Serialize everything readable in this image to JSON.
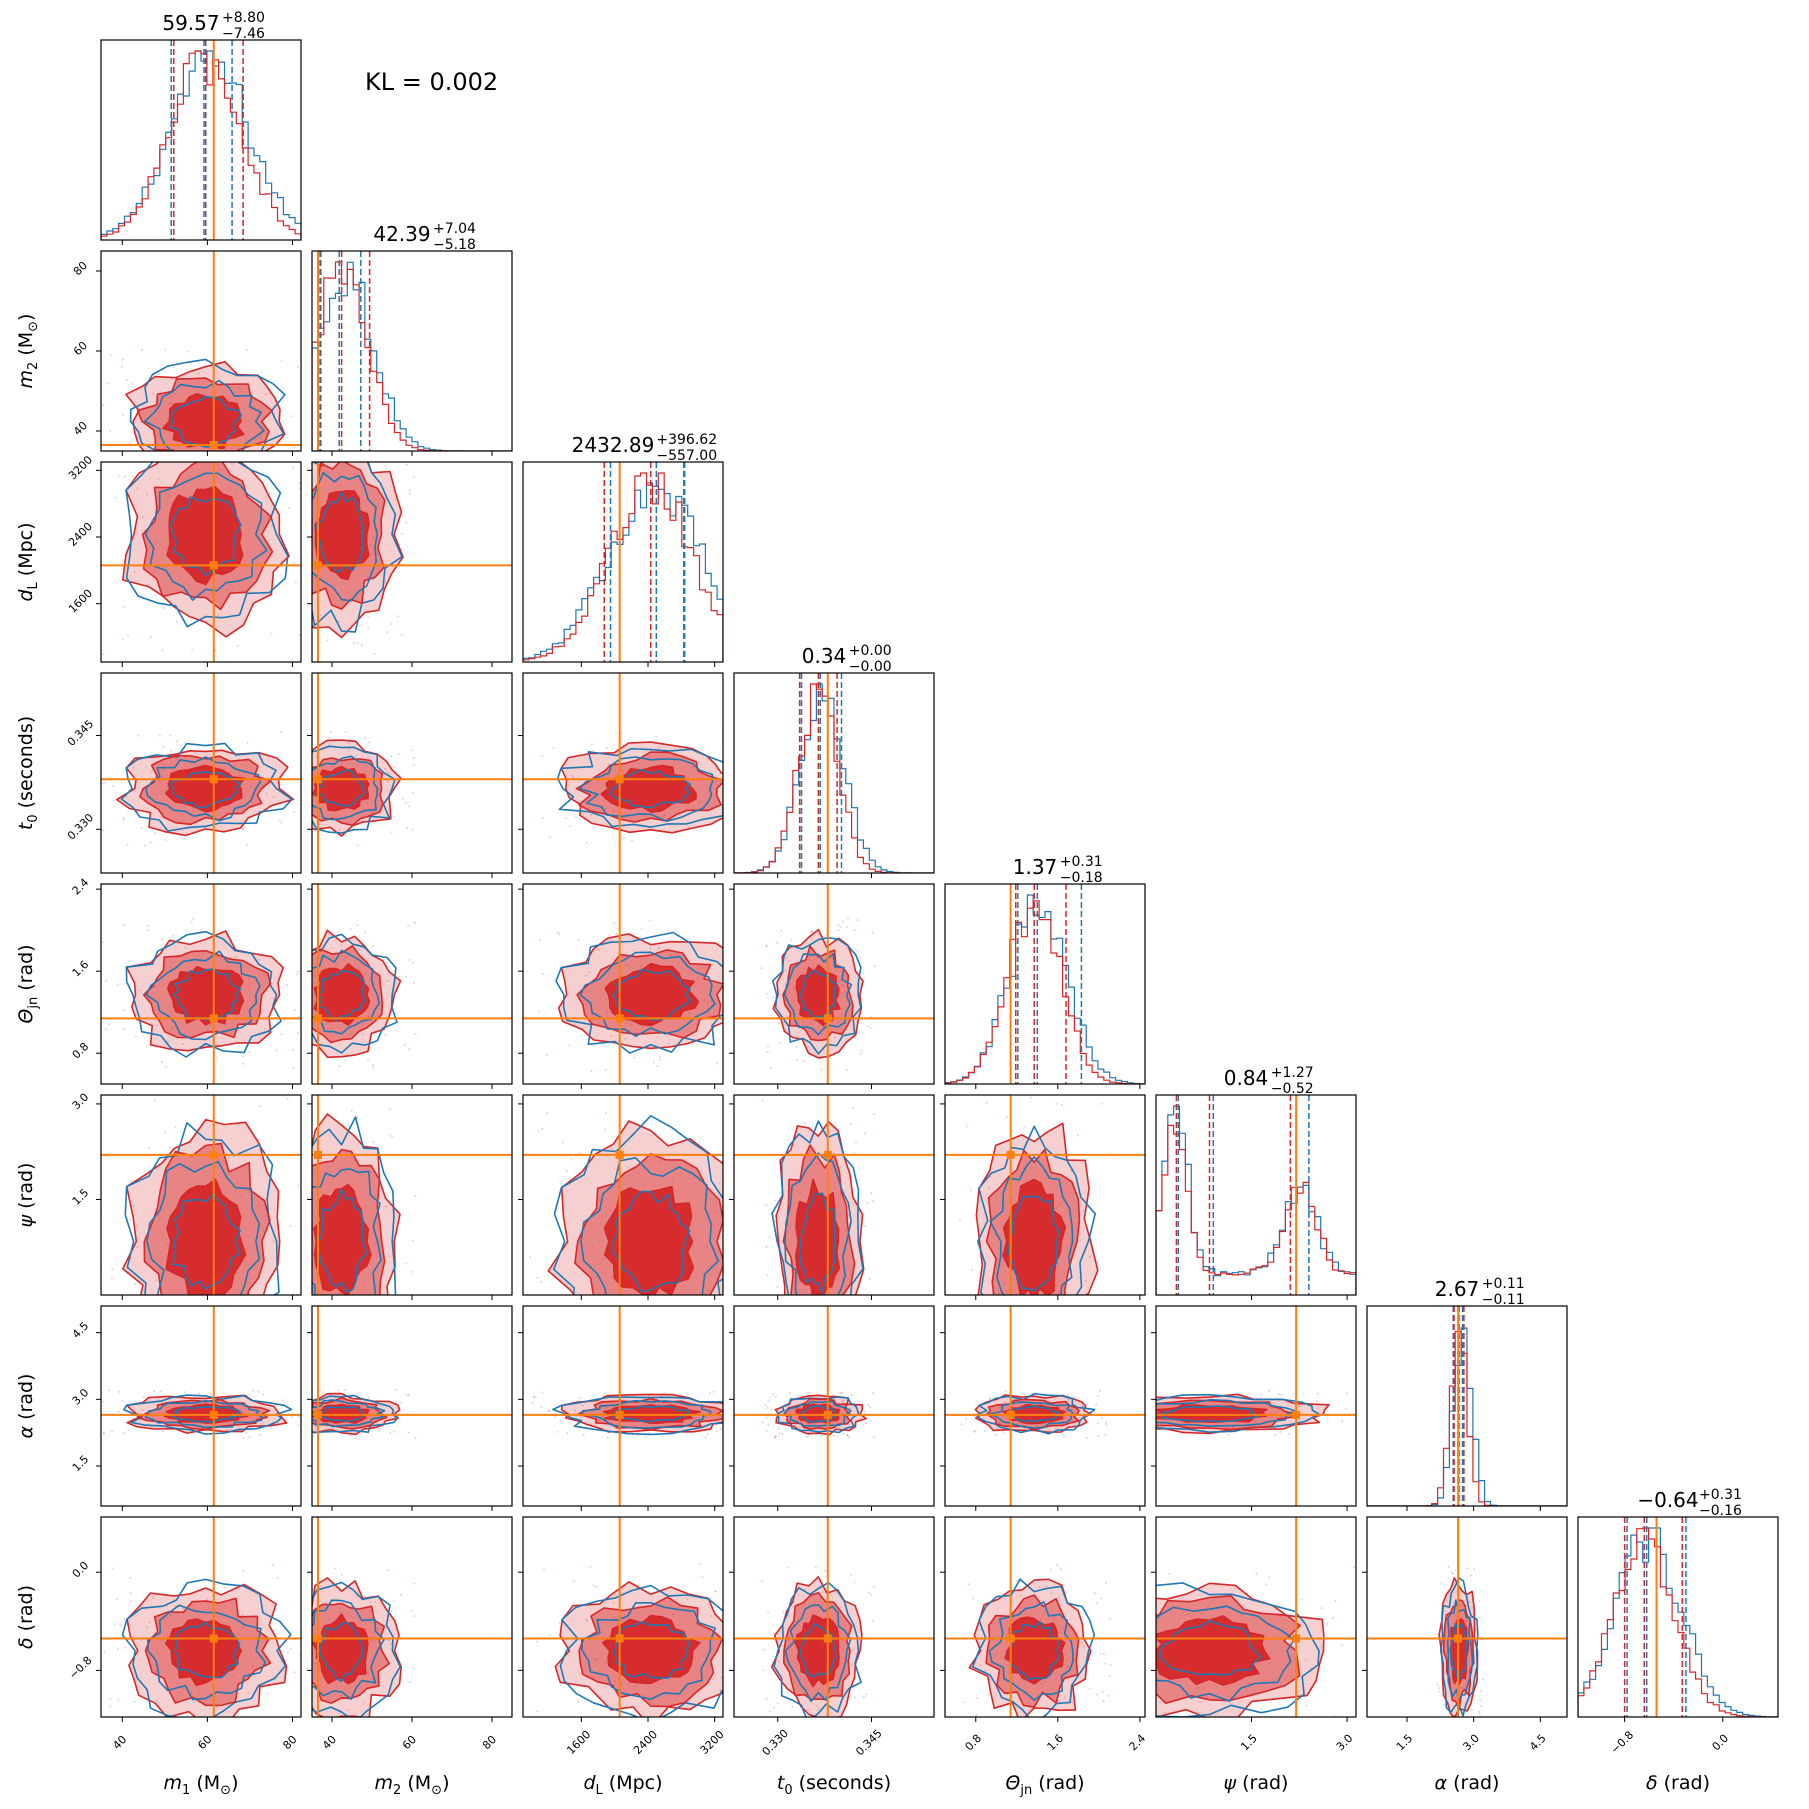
{
  "chart_data": {
    "type": "corner",
    "annotation": "KL = 0.002",
    "colors": {
      "series_a": "#d62728",
      "series_b": "#1f77b4",
      "truth": "#ff7f0e"
    },
    "parameters": [
      {
        "key": "m1",
        "label_main": "m",
        "label_sub": "1",
        "label_unit": " (M",
        "label_unit_sub": "⊙",
        "label_close": ")",
        "range": [
          35,
          82
        ],
        "ticks": [
          40,
          60,
          80
        ],
        "tick_labels": [
          "40",
          "60",
          "80"
        ],
        "truth": 61.5,
        "title_main": "59.57",
        "title_plus": "+8.80",
        "title_minus": "−7.46",
        "quantiles_a": [
          52.1,
          59.6,
          68.4
        ],
        "quantiles_b": [
          51.5,
          59.2,
          65.8
        ]
      },
      {
        "key": "m2",
        "label_main": "m",
        "label_sub": "2",
        "label_unit": " (M",
        "label_unit_sub": "⊙",
        "label_close": ")",
        "range": [
          35,
          85
        ],
        "ticks": [
          40,
          60,
          80
        ],
        "tick_labels": [
          "40",
          "60",
          "80"
        ],
        "truth": 36.5,
        "title_main": "42.39",
        "title_plus": "+7.04",
        "title_minus": "−5.18",
        "quantiles_a": [
          37.2,
          42.4,
          49.4
        ],
        "quantiles_b": [
          37.0,
          41.8,
          47.2
        ]
      },
      {
        "key": "dL",
        "label_main": "d",
        "label_sub": "L",
        "label_unit": " (Mpc)",
        "label_unit_sub": "",
        "label_close": "",
        "range": [
          900,
          3300
        ],
        "ticks": [
          1600,
          2400,
          3200
        ],
        "tick_labels": [
          "1600",
          "2400",
          "3200"
        ],
        "truth": 2060,
        "title_main": "2432.89",
        "title_plus": "+396.62",
        "title_minus": "−557.00",
        "quantiles_a": [
          1875,
          2433,
          2830
        ],
        "quantiles_b": [
          1950,
          2500,
          2840
        ]
      },
      {
        "key": "t0",
        "label_main": "t",
        "label_sub": "0",
        "label_unit": " (seconds)",
        "label_unit_sub": "",
        "label_close": "",
        "range": [
          0.323,
          0.355
        ],
        "ticks": [
          0.33,
          0.345
        ],
        "tick_labels": [
          "0.330",
          "0.345"
        ],
        "truth": 0.338,
        "title_main": "0.34",
        "title_plus": "+0.00",
        "title_minus": "−0.00",
        "quantiles_a": [
          0.3335,
          0.3365,
          0.3395
        ],
        "quantiles_b": [
          0.3338,
          0.3368,
          0.3402
        ]
      },
      {
        "key": "theta",
        "label_main": "Θ",
        "label_sub": "jn",
        "label_unit": " (rad)",
        "label_unit_sub": "",
        "label_close": "",
        "range": [
          0.5,
          2.45
        ],
        "ticks": [
          0.8,
          1.6,
          2.4
        ],
        "tick_labels": [
          "0.8",
          "1.6",
          "2.4"
        ],
        "truth": 1.14,
        "title_main": "1.37",
        "title_plus": "+0.31",
        "title_minus": "−0.18",
        "quantiles_a": [
          1.19,
          1.37,
          1.68
        ],
        "quantiles_b": [
          1.21,
          1.4,
          1.83
        ]
      },
      {
        "key": "psi",
        "label_main": "ψ",
        "label_sub": "",
        "label_unit": " (rad)",
        "label_unit_sub": "",
        "label_close": "",
        "range": [
          0.0,
          3.14
        ],
        "ticks": [
          1.5,
          3.0
        ],
        "tick_labels": [
          "1.5",
          "3.0"
        ],
        "truth": 2.2,
        "title_main": "0.84",
        "title_plus": "+1.27",
        "title_minus": "−0.52",
        "quantiles_a": [
          0.32,
          0.84,
          2.11
        ],
        "quantiles_b": [
          0.35,
          0.9,
          2.4
        ]
      },
      {
        "key": "alpha",
        "label_main": "α",
        "label_sub": "",
        "label_unit": " (rad)",
        "label_unit_sub": "",
        "label_close": "",
        "range": [
          0.6,
          5.1
        ],
        "ticks": [
          1.5,
          3.0,
          4.5
        ],
        "tick_labels": [
          "1.5",
          "3.0",
          "4.5"
        ],
        "truth": 2.65,
        "title_main": "2.67",
        "title_plus": "+0.11",
        "title_minus": "−0.11",
        "quantiles_a": [
          2.56,
          2.67,
          2.78
        ],
        "quantiles_b": [
          2.54,
          2.65,
          2.75
        ]
      },
      {
        "key": "delta",
        "label_main": "δ",
        "label_sub": "",
        "label_unit": " (rad)",
        "label_unit_sub": "",
        "label_close": "",
        "range": [
          -1.18,
          0.45
        ],
        "ticks": [
          -0.8,
          0.0
        ],
        "tick_labels": [
          "−0.8",
          "0.0"
        ],
        "truth": -0.54,
        "title_main": "−0.64",
        "title_plus": "+0.31",
        "title_minus": "−0.16",
        "quantiles_a": [
          -0.8,
          -0.64,
          -0.33
        ],
        "quantiles_b": [
          -0.78,
          -0.62,
          -0.3
        ]
      }
    ]
  }
}
